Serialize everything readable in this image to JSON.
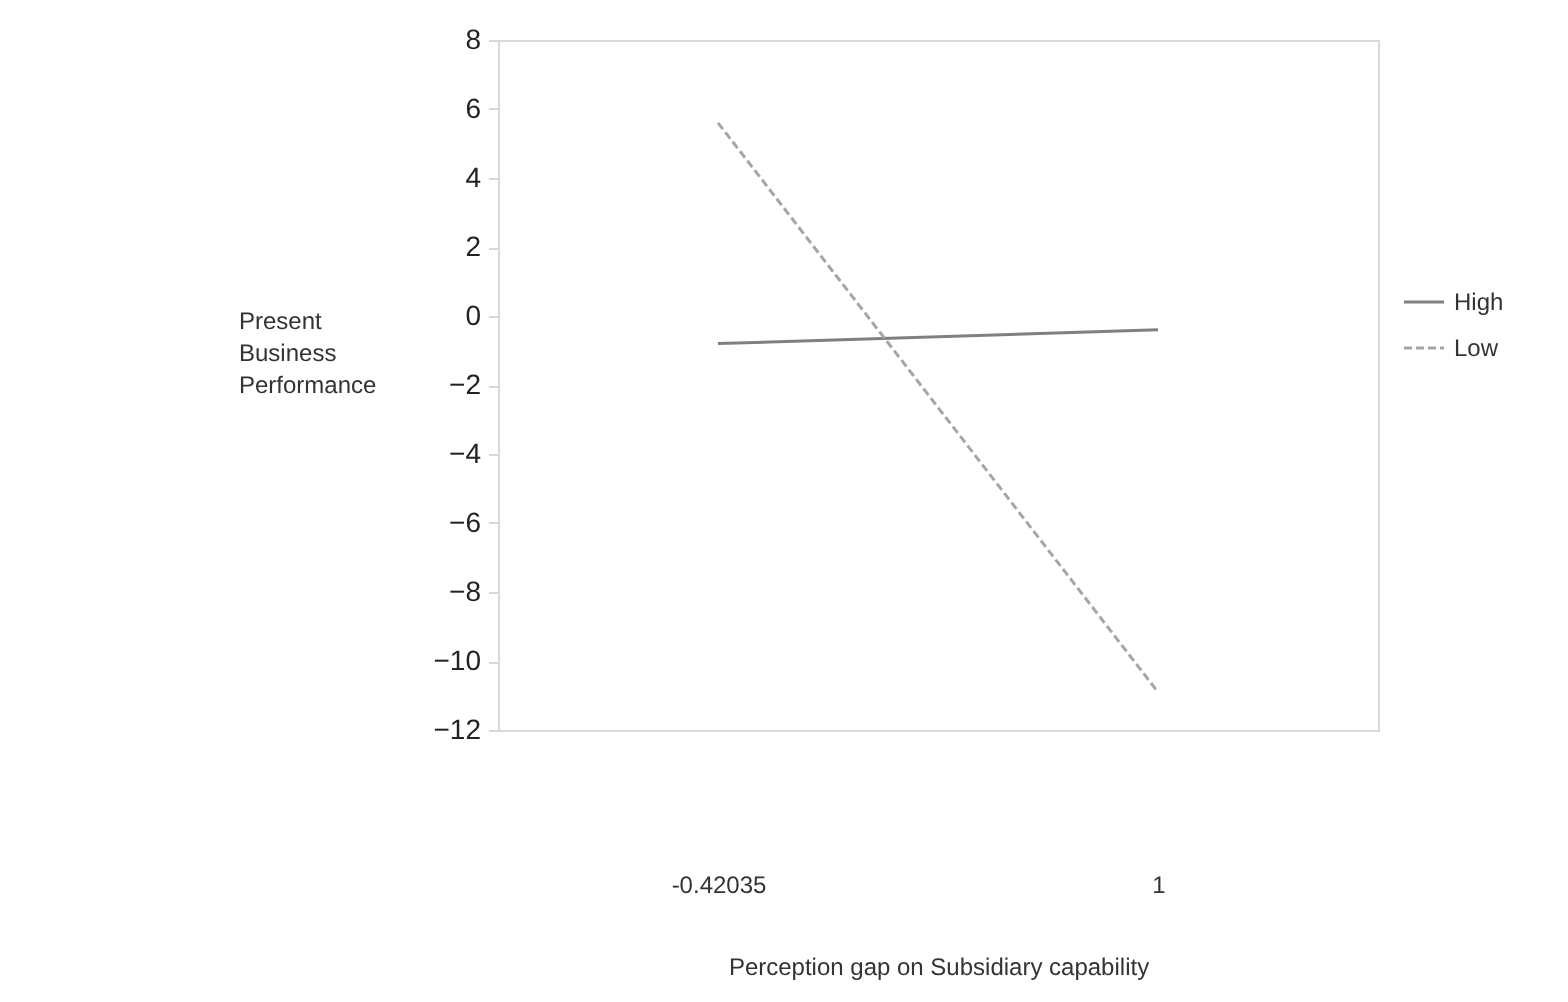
{
  "chart_data": {
    "type": "line",
    "xlabel": "Perception gap on Subsidiary  capability",
    "ylabel": "Present Business Performance",
    "categories": [
      "-0.42035",
      "1"
    ],
    "series": [
      {
        "name": "High",
        "color": "#808080",
        "values": [
          -0.8,
          -0.4
        ],
        "line_style": "solid"
      },
      {
        "name": "Low",
        "color": "#a6a6a6",
        "values": [
          5.6,
          -10.9
        ],
        "line_style": "dashed"
      }
    ],
    "ylim": [
      -12,
      8
    ],
    "yticks": [
      -12,
      -10,
      -8,
      -6,
      -4,
      -2,
      0,
      2,
      4,
      6,
      8
    ],
    "grid": false,
    "legend": "right",
    "marker": "none"
  }
}
